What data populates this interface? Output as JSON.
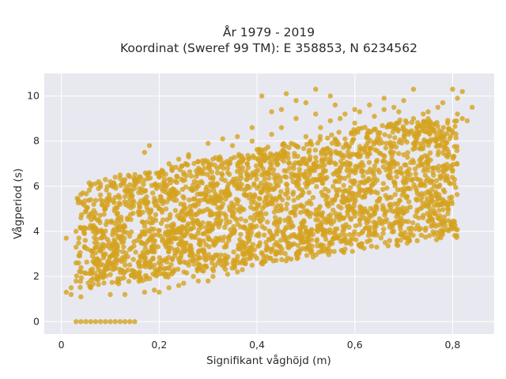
{
  "chart_data": {
    "type": "scatter",
    "title_line1": "År 1979 - 2019",
    "title_line2": "Koordinat (Sweref 99 TM): E 358853, N 6234562",
    "xlabel": "Signifikant våghöjd (m)",
    "ylabel": "Vågperiod (s)",
    "xlim": [
      -0.035,
      0.885
    ],
    "ylim": [
      -0.55,
      11.0
    ],
    "xticks": [
      0,
      0.2,
      0.4,
      0.6,
      0.8
    ],
    "xtick_labels": [
      "0",
      "0,2",
      "0,4",
      "0,6",
      "0,8"
    ],
    "yticks": [
      0,
      2,
      4,
      6,
      8,
      10
    ],
    "ytick_labels": [
      "0",
      "2",
      "4",
      "6",
      "8",
      "10"
    ],
    "grid": true,
    "legend": "none",
    "colors": {
      "point": "#d4a31f",
      "plot_bg": "#e8e8f0",
      "grid": "#ffffff"
    },
    "series": [
      {
        "points": [
          [
            0.03,
            0.0
          ],
          [
            0.04,
            0.0
          ],
          [
            0.05,
            0.0
          ],
          [
            0.06,
            0.0
          ],
          [
            0.07,
            0.0
          ],
          [
            0.08,
            0.0
          ],
          [
            0.09,
            0.0
          ],
          [
            0.1,
            0.0
          ],
          [
            0.11,
            0.0
          ],
          [
            0.12,
            0.0
          ],
          [
            0.13,
            0.0
          ],
          [
            0.14,
            0.0
          ],
          [
            0.15,
            0.0
          ],
          [
            0.01,
            3.7
          ],
          [
            0.01,
            1.3
          ],
          [
            0.02,
            1.2
          ],
          [
            0.02,
            1.5
          ],
          [
            0.03,
            1.8
          ],
          [
            0.03,
            2.6
          ],
          [
            0.03,
            3.3
          ],
          [
            0.03,
            4.0
          ],
          [
            0.04,
            5.3
          ],
          [
            0.04,
            4.6
          ],
          [
            0.04,
            2.2
          ],
          [
            0.04,
            1.1
          ],
          [
            0.06,
            6.0
          ],
          [
            0.06,
            5.4
          ],
          [
            0.06,
            1.5
          ],
          [
            0.07,
            4.8
          ],
          [
            0.08,
            6.1
          ],
          [
            0.09,
            6.3
          ],
          [
            0.09,
            5.0
          ],
          [
            0.09,
            3.0
          ],
          [
            0.1,
            6.2
          ],
          [
            0.1,
            1.2
          ],
          [
            0.11,
            6.4
          ],
          [
            0.12,
            6.5
          ],
          [
            0.12,
            5.2
          ],
          [
            0.13,
            6.3
          ],
          [
            0.13,
            4.2
          ],
          [
            0.13,
            1.2
          ],
          [
            0.14,
            5.5
          ],
          [
            0.14,
            3.2
          ],
          [
            0.15,
            6.2
          ],
          [
            0.15,
            2.0
          ],
          [
            0.16,
            5.9
          ],
          [
            0.17,
            7.5
          ],
          [
            0.18,
            6.6
          ],
          [
            0.18,
            7.8
          ],
          [
            0.18,
            4.8
          ],
          [
            0.19,
            2.5
          ],
          [
            0.2,
            6.4
          ],
          [
            0.2,
            5.0
          ],
          [
            0.2,
            1.3
          ],
          [
            0.22,
            7.0
          ],
          [
            0.22,
            6.3
          ],
          [
            0.22,
            3.9
          ],
          [
            0.23,
            5.6
          ],
          [
            0.24,
            1.6
          ],
          [
            0.25,
            6.6
          ],
          [
            0.25,
            3.1
          ],
          [
            0.26,
            7.3
          ],
          [
            0.27,
            4.5
          ],
          [
            0.27,
            2.0
          ],
          [
            0.28,
            6.0
          ],
          [
            0.28,
            5.2
          ],
          [
            0.29,
            7.0
          ],
          [
            0.3,
            1.8
          ],
          [
            0.3,
            4.0
          ],
          [
            0.31,
            6.4
          ],
          [
            0.31,
            7.2
          ],
          [
            0.32,
            5.5
          ],
          [
            0.32,
            2.6
          ],
          [
            0.33,
            3.6
          ],
          [
            0.34,
            6.8
          ],
          [
            0.35,
            7.8
          ],
          [
            0.35,
            4.8
          ],
          [
            0.36,
            2.2
          ],
          [
            0.36,
            5.9
          ],
          [
            0.37,
            3.4
          ],
          [
            0.38,
            7.0
          ],
          [
            0.38,
            6.0
          ],
          [
            0.39,
            8.0
          ],
          [
            0.4,
            4.6
          ],
          [
            0.4,
            2.8
          ],
          [
            0.41,
            7.6
          ],
          [
            0.41,
            6.5
          ],
          [
            0.42,
            3.2
          ],
          [
            0.43,
            8.3
          ],
          [
            0.43,
            5.3
          ],
          [
            0.44,
            7.2
          ],
          [
            0.44,
            4.0
          ],
          [
            0.45,
            8.6
          ],
          [
            0.46,
            6.4
          ],
          [
            0.47,
            4.4
          ],
          [
            0.47,
            7.9
          ],
          [
            0.48,
            9.0
          ],
          [
            0.49,
            5.6
          ],
          [
            0.5,
            8.2
          ],
          [
            0.5,
            7.0
          ],
          [
            0.51,
            4.8
          ],
          [
            0.52,
            9.2
          ],
          [
            0.52,
            6.3
          ],
          [
            0.53,
            8.6
          ],
          [
            0.54,
            5.6
          ],
          [
            0.54,
            7.4
          ],
          [
            0.55,
            8.9
          ],
          [
            0.56,
            4.1
          ],
          [
            0.57,
            6.8
          ],
          [
            0.57,
            9.0
          ],
          [
            0.58,
            8.1
          ],
          [
            0.58,
            5.8
          ],
          [
            0.59,
            7.3
          ],
          [
            0.6,
            8.8
          ],
          [
            0.6,
            6.2
          ],
          [
            0.61,
            9.3
          ],
          [
            0.62,
            7.6
          ],
          [
            0.62,
            5.8
          ],
          [
            0.63,
            8.4
          ],
          [
            0.64,
            9.1
          ],
          [
            0.64,
            6.4
          ],
          [
            0.65,
            7.9
          ],
          [
            0.66,
            9.4
          ],
          [
            0.67,
            6.8
          ],
          [
            0.68,
            8.7
          ],
          [
            0.68,
            6.2
          ],
          [
            0.69,
            9.3
          ],
          [
            0.7,
            7.4
          ],
          [
            0.71,
            8.3
          ],
          [
            0.72,
            10.3
          ],
          [
            0.72,
            9.0
          ],
          [
            0.73,
            6.9
          ],
          [
            0.74,
            7.8
          ],
          [
            0.75,
            9.3
          ],
          [
            0.76,
            8.5
          ],
          [
            0.77,
            7.4
          ],
          [
            0.77,
            9.5
          ],
          [
            0.78,
            8.2
          ],
          [
            0.79,
            8.8
          ],
          [
            0.8,
            10.3
          ],
          [
            0.81,
            9.2
          ],
          [
            0.82,
            10.2
          ],
          [
            0.82,
            9.0
          ],
          [
            0.83,
            8.9
          ],
          [
            0.84,
            9.5
          ],
          [
            0.41,
            10.0
          ],
          [
            0.45,
            9.4
          ],
          [
            0.46,
            10.1
          ],
          [
            0.48,
            9.8
          ],
          [
            0.5,
            9.7
          ],
          [
            0.52,
            10.3
          ],
          [
            0.56,
            9.6
          ],
          [
            0.58,
            9.2
          ],
          [
            0.6,
            9.4
          ],
          [
            0.63,
            9.6
          ],
          [
            0.66,
            9.9
          ],
          [
            0.68,
            9.5
          ],
          [
            0.7,
            9.8
          ],
          [
            0.74,
            9.2
          ],
          [
            0.78,
            9.7
          ],
          [
            0.81,
            9.9
          ],
          [
            0.55,
            10.0
          ],
          [
            0.43,
            9.3
          ],
          [
            0.39,
            8.6
          ],
          [
            0.36,
            8.2
          ],
          [
            0.33,
            8.1
          ],
          [
            0.3,
            7.9
          ],
          [
            0.26,
            7.4
          ],
          [
            0.24,
            7.2
          ],
          [
            0.46,
            5.0
          ],
          [
            0.49,
            3.6
          ],
          [
            0.53,
            4.3
          ],
          [
            0.55,
            3.5
          ],
          [
            0.58,
            3.6
          ],
          [
            0.61,
            4.3
          ],
          [
            0.64,
            4.2
          ],
          [
            0.67,
            5.5
          ],
          [
            0.7,
            5.7
          ],
          [
            0.73,
            6.3
          ],
          [
            0.76,
            6.8
          ],
          [
            0.79,
            7.3
          ],
          [
            0.43,
            3.2
          ],
          [
            0.41,
            2.6
          ],
          [
            0.39,
            2.5
          ],
          [
            0.37,
            2.3
          ],
          [
            0.34,
            2.1
          ],
          [
            0.31,
            2.0
          ],
          [
            0.28,
            1.8
          ],
          [
            0.25,
            1.7
          ],
          [
            0.22,
            1.5
          ],
          [
            0.19,
            1.4
          ],
          [
            0.17,
            1.3
          ]
        ]
      }
    ]
  }
}
